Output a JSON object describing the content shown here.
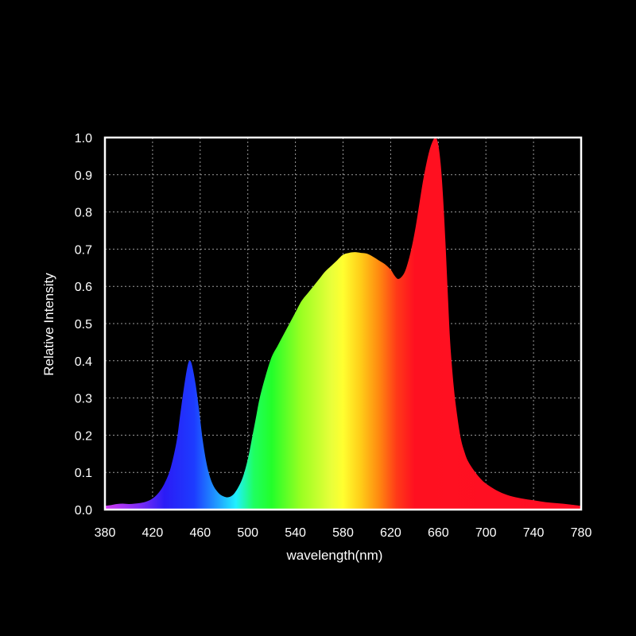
{
  "chart_data": {
    "type": "area",
    "xlabel": "wavelength(nm)",
    "ylabel": "Relative Intensity",
    "xlim": [
      380,
      780
    ],
    "ylim": [
      0,
      1.0
    ],
    "xticks": [
      "380",
      "420",
      "460",
      "500",
      "540",
      "580",
      "620",
      "660",
      "700",
      "740",
      "780"
    ],
    "yticks": [
      "0.0",
      "0.1",
      "0.2",
      "0.3",
      "0.4",
      "0.5",
      "0.6",
      "0.7",
      "0.8",
      "0.9",
      "1.0"
    ],
    "grid": true,
    "series": [
      {
        "x": [
          380,
          385,
          390,
          395,
          400,
          405,
          410,
          415,
          420,
          425,
          430,
          435,
          440,
          443,
          446,
          449,
          451,
          453,
          456,
          459,
          462,
          465,
          468,
          471,
          474,
          477,
          480,
          483,
          486,
          489,
          492,
          495,
          498,
          501,
          504,
          507,
          510,
          515,
          520,
          525,
          530,
          535,
          540,
          545,
          550,
          555,
          560,
          565,
          570,
          575,
          580,
          585,
          590,
          595,
          600,
          605,
          610,
          615,
          620,
          623,
          626,
          629,
          632,
          635,
          638,
          641,
          644,
          647,
          650,
          653,
          656,
          658,
          660,
          662,
          664,
          666,
          668,
          670,
          673,
          676,
          679,
          682,
          685,
          690,
          695,
          700,
          710,
          720,
          730,
          740,
          750,
          760,
          770,
          780
        ],
        "values": [
          0.01,
          0.012,
          0.015,
          0.016,
          0.015,
          0.016,
          0.018,
          0.022,
          0.03,
          0.045,
          0.07,
          0.11,
          0.18,
          0.25,
          0.32,
          0.38,
          0.4,
          0.39,
          0.34,
          0.27,
          0.19,
          0.13,
          0.09,
          0.065,
          0.05,
          0.04,
          0.035,
          0.033,
          0.036,
          0.045,
          0.06,
          0.08,
          0.11,
          0.15,
          0.2,
          0.25,
          0.3,
          0.36,
          0.41,
          0.44,
          0.47,
          0.5,
          0.53,
          0.56,
          0.58,
          0.6,
          0.62,
          0.64,
          0.655,
          0.67,
          0.685,
          0.69,
          0.692,
          0.69,
          0.688,
          0.68,
          0.67,
          0.66,
          0.645,
          0.63,
          0.62,
          0.625,
          0.64,
          0.67,
          0.71,
          0.76,
          0.82,
          0.88,
          0.93,
          0.97,
          0.995,
          1.0,
          0.98,
          0.93,
          0.84,
          0.72,
          0.58,
          0.45,
          0.33,
          0.25,
          0.19,
          0.155,
          0.13,
          0.105,
          0.085,
          0.07,
          0.05,
          0.037,
          0.03,
          0.025,
          0.02,
          0.017,
          0.014,
          0.01
        ]
      }
    ],
    "gradient_stops": [
      {
        "wl": 380,
        "color": "#d13cf0"
      },
      {
        "wl": 410,
        "color": "#7a2cf5"
      },
      {
        "wl": 430,
        "color": "#2a1cf6"
      },
      {
        "wl": 455,
        "color": "#1d3cff"
      },
      {
        "wl": 475,
        "color": "#1fa0ff"
      },
      {
        "wl": 490,
        "color": "#1ff0ff"
      },
      {
        "wl": 505,
        "color": "#1fff60"
      },
      {
        "wl": 520,
        "color": "#22ff2a"
      },
      {
        "wl": 545,
        "color": "#9bff22"
      },
      {
        "wl": 570,
        "color": "#e8ff3a"
      },
      {
        "wl": 580,
        "color": "#ffff30"
      },
      {
        "wl": 595,
        "color": "#ffcc18"
      },
      {
        "wl": 610,
        "color": "#ff8a10"
      },
      {
        "wl": 625,
        "color": "#ff3a18"
      },
      {
        "wl": 640,
        "color": "#ff1020"
      },
      {
        "wl": 780,
        "color": "#ff0e24"
      }
    ],
    "colors": {
      "background": "#000000",
      "frame": "#ffffff",
      "grid": "#9a9a9a",
      "text": "#ffffff"
    }
  }
}
